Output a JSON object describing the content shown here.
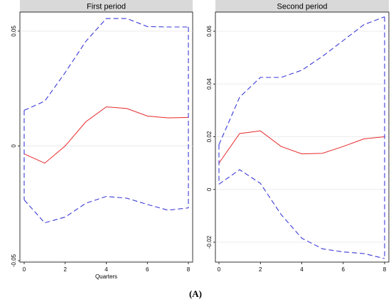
{
  "caption": "(A)",
  "chart_data": [
    {
      "type": "line",
      "title": "First period",
      "xlabel": "Quarters",
      "ylabel": "",
      "xlim": [
        0,
        8
      ],
      "ylim": [
        -0.05,
        0.058
      ],
      "xticks": [
        0,
        2,
        4,
        6,
        8
      ],
      "yticks": [
        -0.05,
        0,
        0.05
      ],
      "ytick_labels": [
        "-0.05",
        "0",
        "0.05"
      ],
      "grid": true,
      "legend": "none",
      "x": [
        0,
        1,
        2,
        3,
        4,
        5,
        6,
        7,
        8
      ],
      "series": [
        {
          "style": "solid",
          "color": "#e8282b",
          "values": [
            -0.0035,
            -0.0075,
            0.0,
            0.0105,
            0.017,
            0.0163,
            0.013,
            0.0122,
            0.0124
          ]
        },
        {
          "style": "dashed",
          "color": "#3a3ad8",
          "values": [
            0.0155,
            0.0195,
            0.032,
            0.0455,
            0.0555,
            0.0555,
            0.052,
            0.0518,
            0.0518
          ]
        },
        {
          "style": "dashed",
          "color": "#3a3ad8",
          "values": [
            -0.0235,
            -0.0335,
            -0.031,
            -0.025,
            -0.022,
            -0.0228,
            -0.0255,
            -0.028,
            -0.027
          ]
        }
      ]
    },
    {
      "type": "line",
      "title": "Second period",
      "xlabel": "",
      "ylabel": "",
      "xlim": [
        0,
        8
      ],
      "ylim": [
        -0.027,
        0.067
      ],
      "xticks": [
        0,
        2,
        4,
        6,
        8
      ],
      "yticks": [
        -0.02,
        0,
        0.02,
        0.04,
        0.06
      ],
      "ytick_labels": [
        "-0.02",
        "0",
        "0.02",
        "0.04",
        "0.06"
      ],
      "grid": true,
      "legend": "none",
      "x": [
        0,
        1,
        2,
        3,
        4,
        5,
        6,
        7,
        8
      ],
      "series": [
        {
          "style": "solid",
          "color": "#e8282b",
          "values": [
            0.01,
            0.0212,
            0.0222,
            0.0163,
            0.0135,
            0.0137,
            0.0163,
            0.0192,
            0.02
          ]
        },
        {
          "style": "dashed",
          "color": "#3a3ad8",
          "values": [
            0.017,
            0.035,
            0.0425,
            0.0425,
            0.0452,
            0.0505,
            0.0565,
            0.0625,
            0.0655
          ]
        },
        {
          "style": "dashed",
          "color": "#3a3ad8",
          "values": [
            0.002,
            0.0075,
            0.0023,
            -0.0095,
            -0.0185,
            -0.0225,
            -0.0237,
            -0.0243,
            -0.0262
          ]
        }
      ]
    }
  ]
}
